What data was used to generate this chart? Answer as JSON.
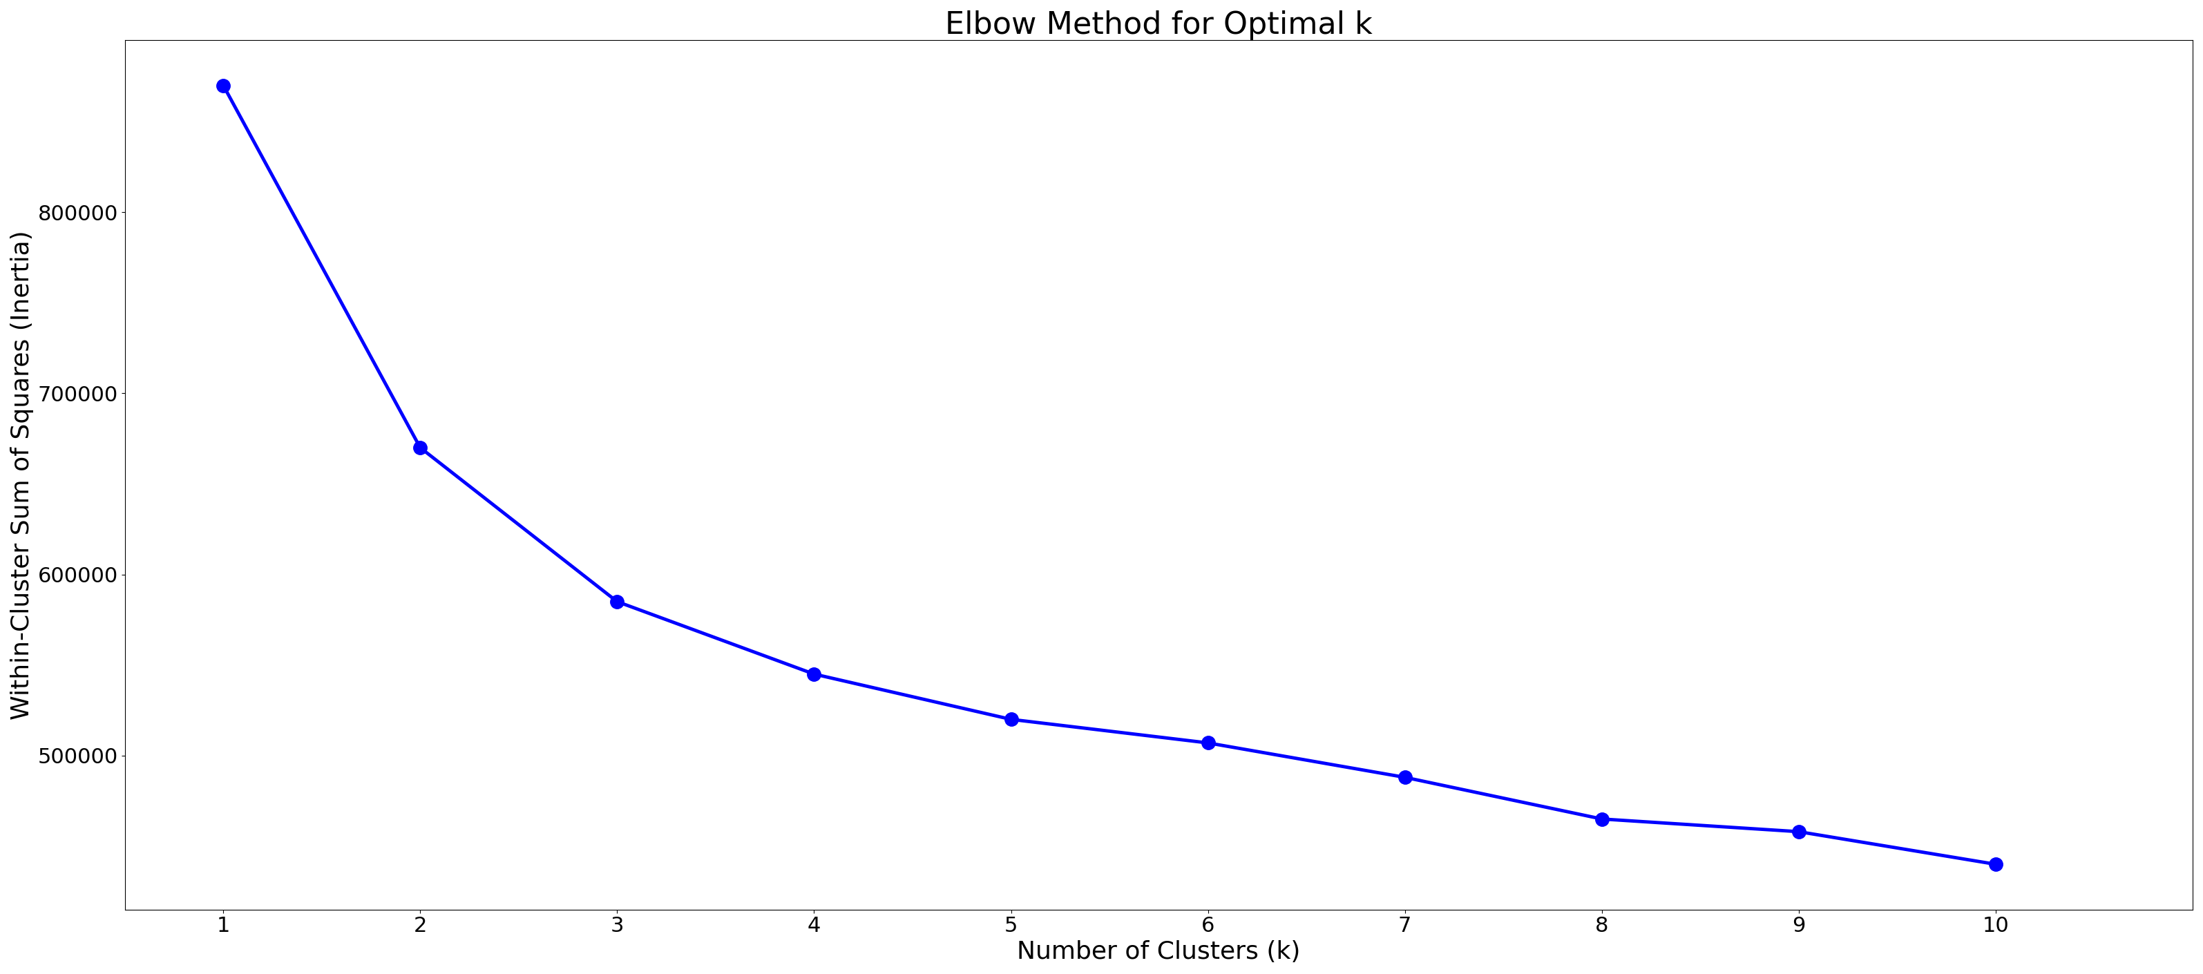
{
  "k_values": [
    1,
    2,
    3,
    4,
    5,
    6,
    7,
    8,
    9,
    10
  ],
  "inertia": [
    870000,
    670000,
    585000,
    545000,
    520000,
    507000,
    488000,
    465000,
    458000,
    440000
  ],
  "line_color": "#0000ff",
  "marker": "o",
  "marker_color": "#0000ff",
  "marker_size": 14,
  "line_width": 3.5,
  "title": "Elbow Method for Optimal k",
  "xlabel": "Number of Clusters (k)",
  "ylabel": "Within-Cluster Sum of Squares (Inertia)",
  "title_fontsize": 32,
  "label_fontsize": 26,
  "tick_fontsize": 22,
  "background_color": "#ffffff",
  "xlim": [
    0.5,
    11.0
  ],
  "ylim": [
    415000,
    895000
  ],
  "yticks": [
    500000,
    600000,
    700000,
    800000
  ],
  "xticks": [
    1,
    2,
    3,
    4,
    5,
    6,
    7,
    8,
    9,
    10
  ]
}
